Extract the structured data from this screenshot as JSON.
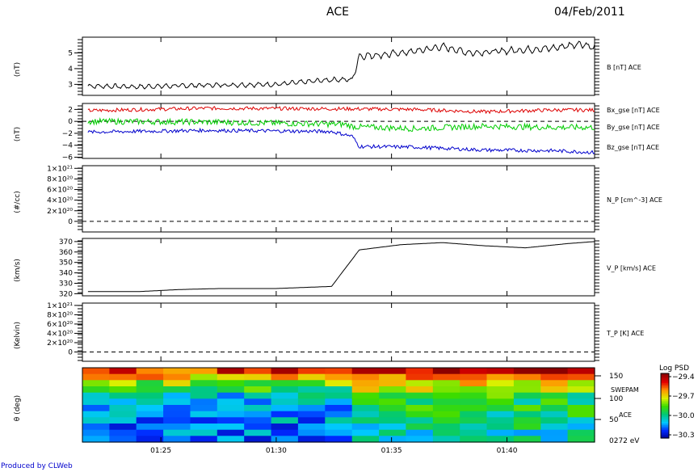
{
  "header": {
    "title": "ACE",
    "date": "04/Feb/2011"
  },
  "footer": {
    "credit": "Produced by CLWeb"
  },
  "chart_data": [
    {
      "type": "line",
      "ylabel": "(nT)",
      "ylim": [
        2.3,
        6.0
      ],
      "yticks": [
        "3",
        "4",
        "5"
      ],
      "xlim": [
        1.36,
        1.73
      ],
      "series": [
        {
          "name": "B [nT] ACE",
          "color": "#000000",
          "x": [
            1.364,
            1.4,
            1.45,
            1.5,
            1.54,
            1.555,
            1.56,
            1.58,
            1.6,
            1.62,
            1.64,
            1.66,
            1.68,
            1.7,
            1.72,
            1.73
          ],
          "values": [
            2.9,
            2.85,
            2.95,
            3.0,
            3.3,
            3.3,
            4.8,
            4.9,
            5.1,
            5.4,
            5.0,
            5.1,
            5.2,
            5.3,
            5.6,
            5.3
          ]
        }
      ]
    },
    {
      "type": "line",
      "ylabel": "(nT)",
      "ylim": [
        -6.2,
        3.0
      ],
      "yticks": [
        "2",
        "0",
        "−2",
        "−4",
        "−6"
      ],
      "zero_line": true,
      "xlim": [
        1.36,
        1.73
      ],
      "series": [
        {
          "name": "Bx_gse [nT] ACE",
          "color": "#dd0000",
          "x": [
            1.364,
            1.45,
            1.55,
            1.6,
            1.65,
            1.7,
            1.73
          ],
          "values": [
            1.8,
            2.2,
            2.1,
            2.0,
            1.6,
            1.9,
            1.9
          ]
        },
        {
          "name": "By_gse [nT] ACE",
          "color": "#00cc00",
          "x": [
            1.364,
            1.45,
            1.55,
            1.556,
            1.6,
            1.65,
            1.7,
            1.73
          ],
          "values": [
            0.0,
            -0.1,
            -0.5,
            -0.9,
            -1.2,
            -0.8,
            -1.0,
            -1.0
          ]
        },
        {
          "name": "Bz_gse [nT] ACE",
          "color": "#0000cc",
          "x": [
            1.364,
            1.45,
            1.54,
            1.555,
            1.56,
            1.6,
            1.65,
            1.7,
            1.73
          ],
          "values": [
            -1.8,
            -1.5,
            -1.7,
            -2.5,
            -4.2,
            -4.3,
            -4.8,
            -4.9,
            -5.2
          ]
        }
      ]
    },
    {
      "type": "line",
      "ylabel": "(#/cc)",
      "ylim": [
        -0.2,
        1.05
      ],
      "yticks": [
        "1×10²¹",
        "8×10²⁰",
        "6×10²⁰",
        "4×10²⁰",
        "2×10²⁰",
        "0"
      ],
      "zero_line": true,
      "xlim": [
        1.36,
        1.73
      ],
      "series": [
        {
          "name": "N_P [cm^-3] ACE",
          "color": "#000000",
          "x": [],
          "values": []
        }
      ]
    },
    {
      "type": "line",
      "ylabel": "(km/s)",
      "ylim": [
        318,
        373
      ],
      "yticks": [
        "370",
        "360",
        "350",
        "340",
        "330",
        "320"
      ],
      "xlim": [
        1.36,
        1.73
      ],
      "series": [
        {
          "name": "V_P [km/s] ACE",
          "color": "#000000",
          "x": [
            1.364,
            1.4,
            1.43,
            1.46,
            1.5,
            1.54,
            1.56,
            1.59,
            1.62,
            1.65,
            1.68,
            1.71,
            1.73
          ],
          "values": [
            322,
            322,
            324,
            325,
            325,
            327,
            362,
            367,
            369,
            366,
            364,
            368,
            370
          ]
        }
      ]
    },
    {
      "type": "line",
      "ylabel": "(Kelvin)",
      "ylim": [
        -0.2,
        1.05
      ],
      "yticks": [
        "1×10²¹",
        "8×10²⁰",
        "6×10²⁰",
        "4×10²⁰",
        "2×10²⁰",
        "0"
      ],
      "zero_line": true,
      "xlim": [
        1.36,
        1.73
      ],
      "series": [
        {
          "name": "T_P [K] ACE",
          "color": "#000000",
          "x": [],
          "values": []
        }
      ]
    },
    {
      "type": "heatmap",
      "ylabel": "θ (deg)",
      "yticks": [
        "150",
        "100",
        "50"
      ],
      "right_labels": [
        "SWEPAM",
        "ACE",
        "0272 eV"
      ],
      "xticks": [
        "01:25",
        "01:30",
        "01:35",
        "01:40"
      ],
      "colorbar": {
        "title": "Log PSD",
        "ticks": [
          "−29.4",
          "−29.7",
          "−30.0",
          "−30.3"
        ],
        "range": [
          -30.3,
          -29.4
        ]
      },
      "rows": 12,
      "columns": 19
    }
  ]
}
